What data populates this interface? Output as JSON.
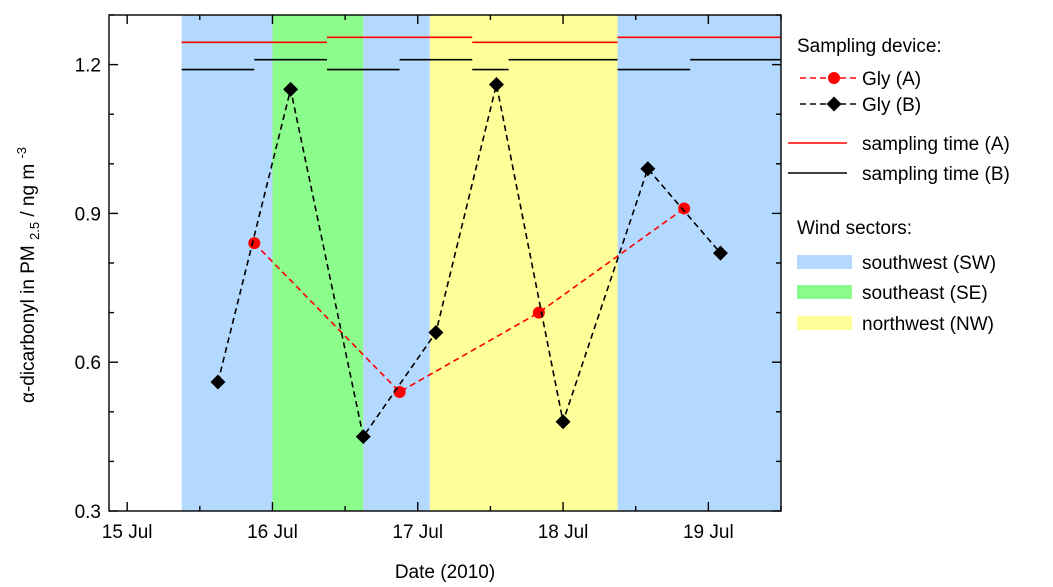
{
  "chart_data": {
    "type": "line",
    "xlabel": "Date (2010)",
    "ylabel_parts": [
      "α-dicarbonyl in PM",
      "2.5",
      " / ng m",
      "-3"
    ],
    "xlim": [
      "2010-07-14 21:00",
      "2010-07-19 12:00"
    ],
    "ylim": [
      0.3,
      1.3
    ],
    "x_ticks": [
      {
        "date": "2010-07-15 00:00",
        "label": "15 Jul"
      },
      {
        "date": "2010-07-16 00:00",
        "label": "16 Jul"
      },
      {
        "date": "2010-07-17 00:00",
        "label": "17 Jul"
      },
      {
        "date": "2010-07-18 00:00",
        "label": "18 Jul"
      },
      {
        "date": "2010-07-19 00:00",
        "label": "19 Jul"
      }
    ],
    "y_ticks": [
      {
        "value": 0.3,
        "label": "0.3"
      },
      {
        "value": 0.6,
        "label": "0.6"
      },
      {
        "value": 0.9,
        "label": "0.9"
      },
      {
        "value": 1.2,
        "label": "1.2"
      }
    ],
    "series": [
      {
        "name": "Gly (A)",
        "color": "#ff0000",
        "marker": "circle",
        "line": "dashed",
        "points": [
          {
            "x": "2010-07-15 21:00",
            "y": 0.84
          },
          {
            "x": "2010-07-16 21:00",
            "y": 0.54
          },
          {
            "x": "2010-07-17 20:00",
            "y": 0.7
          },
          {
            "x": "2010-07-18 20:00",
            "y": 0.91
          }
        ]
      },
      {
        "name": "Gly (B)",
        "color": "#000000",
        "marker": "diamond",
        "line": "dashed",
        "points": [
          {
            "x": "2010-07-15 15:00",
            "y": 0.56
          },
          {
            "x": "2010-07-16 03:00",
            "y": 1.15
          },
          {
            "x": "2010-07-16 15:00",
            "y": 0.45
          },
          {
            "x": "2010-07-17 03:00",
            "y": 0.66
          },
          {
            "x": "2010-07-17 13:00",
            "y": 1.16
          },
          {
            "x": "2010-07-18 00:00",
            "y": 0.48
          },
          {
            "x": "2010-07-18 14:00",
            "y": 0.99
          },
          {
            "x": "2010-07-19 02:00",
            "y": 0.82
          }
        ]
      }
    ],
    "sampling_intervals": [
      {
        "name": "sampling time (A)",
        "color": "#ff0000",
        "intervals": [
          {
            "start": "2010-07-15 09:00",
            "end": "2010-07-16 09:00",
            "y": 1.245
          },
          {
            "start": "2010-07-16 09:00",
            "end": "2010-07-17 09:00",
            "y": 1.255
          },
          {
            "start": "2010-07-17 09:00",
            "end": "2010-07-18 09:00",
            "y": 1.245
          },
          {
            "start": "2010-07-18 09:00",
            "end": "2010-07-19 12:00",
            "y": 1.255
          }
        ]
      },
      {
        "name": "sampling time (B)",
        "color": "#000000",
        "intervals": [
          {
            "start": "2010-07-15 09:00",
            "end": "2010-07-15 21:00",
            "y": 1.19
          },
          {
            "start": "2010-07-15 21:00",
            "end": "2010-07-16 09:00",
            "y": 1.21
          },
          {
            "start": "2010-07-16 09:00",
            "end": "2010-07-16 21:00",
            "y": 1.19
          },
          {
            "start": "2010-07-16 21:00",
            "end": "2010-07-17 09:00",
            "y": 1.21
          },
          {
            "start": "2010-07-17 09:00",
            "end": "2010-07-17 15:00",
            "y": 1.19
          },
          {
            "start": "2010-07-17 15:00",
            "end": "2010-07-18 09:00",
            "y": 1.21
          },
          {
            "start": "2010-07-18 09:00",
            "end": "2010-07-18 21:00",
            "y": 1.19
          },
          {
            "start": "2010-07-18 21:00",
            "end": "2010-07-19 12:00",
            "y": 1.21
          }
        ]
      }
    ],
    "wind_sectors": [
      {
        "name": "southwest (SW)",
        "color": "#b3d9ff",
        "start": "2010-07-15 09:00",
        "end": "2010-07-16 00:00"
      },
      {
        "name": "southeast (SE)",
        "color": "#8cfc8c",
        "start": "2010-07-16 00:00",
        "end": "2010-07-16 15:00"
      },
      {
        "name": "southwest (SW)",
        "color": "#b3d9ff",
        "start": "2010-07-16 15:00",
        "end": "2010-07-17 02:00"
      },
      {
        "name": "northwest (NW)",
        "color": "#ffff99",
        "start": "2010-07-17 02:00",
        "end": "2010-07-18 09:00"
      },
      {
        "name": "southwest (SW)",
        "color": "#b3d9ff",
        "start": "2010-07-18 09:00",
        "end": "2010-07-19 12:00"
      }
    ],
    "legend": {
      "placement": "right",
      "sampling_title": "Sampling device:",
      "sampling_items": [
        {
          "label": "Gly (A)",
          "color": "#ff0000",
          "marker": "circle",
          "line": "dashed"
        },
        {
          "label": "Gly (B)",
          "color": "#000000",
          "marker": "diamond",
          "line": "dashed"
        },
        {
          "label": "sampling time (A)",
          "color": "#ff0000",
          "marker": "none",
          "line": "solid"
        },
        {
          "label": "sampling time (B)",
          "color": "#000000",
          "marker": "none",
          "line": "solid"
        }
      ],
      "wind_title": "Wind sectors:",
      "wind_items": [
        {
          "label": "southwest (SW)",
          "color": "#b3d9ff"
        },
        {
          "label": "southeast (SE)",
          "color": "#8cfc8c"
        },
        {
          "label": "northwest (NW)",
          "color": "#ffff99"
        }
      ]
    },
    "grid": false
  }
}
